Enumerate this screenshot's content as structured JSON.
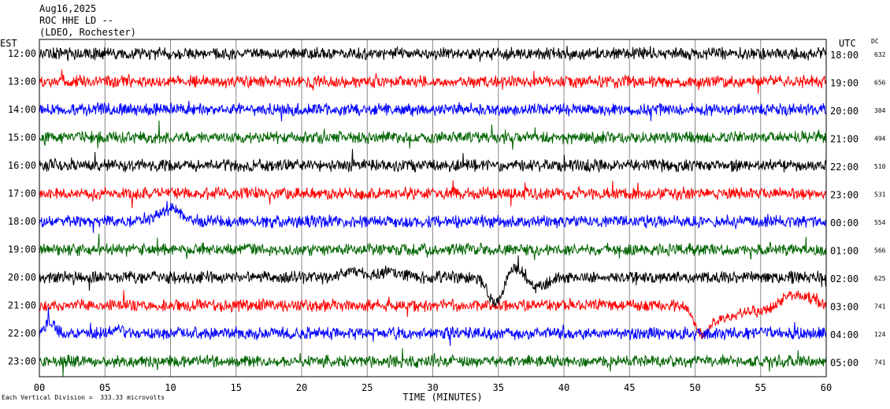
{
  "header": {
    "date": "Aug16,2025",
    "station": "ROC HHE LD --",
    "network": "(LDEO, Rochester)"
  },
  "left_axis_label": "EST",
  "right_axis_label": "UTC",
  "dc_label": "DC",
  "footer": "Each Vertical Division =  333.33 microvolts",
  "chart_data": {
    "type": "line",
    "title": "",
    "xlabel": "TIME (MINUTES)",
    "xlim": [
      0,
      60
    ],
    "x_ticks": [
      0,
      5,
      10,
      15,
      20,
      25,
      30,
      35,
      40,
      45,
      50,
      55,
      60
    ],
    "x_tick_labels": [
      "00",
      "05",
      "10",
      "15",
      "20",
      "25",
      "30",
      "35",
      "40",
      "45",
      "50",
      "55",
      "60"
    ],
    "vertical_grid": true,
    "trace_colors": [
      "#000000",
      "#ff0000",
      "#0000ff",
      "#006400"
    ],
    "rows": [
      {
        "est": "12:00",
        "utc": "18:00",
        "dc": "632"
      },
      {
        "est": "13:00",
        "utc": "19:00",
        "dc": "656"
      },
      {
        "est": "14:00",
        "utc": "20:00",
        "dc": "304"
      },
      {
        "est": "15:00",
        "utc": "21:00",
        "dc": "494"
      },
      {
        "est": "16:00",
        "utc": "22:00",
        "dc": "510"
      },
      {
        "est": "17:00",
        "utc": "23:00",
        "dc": "531"
      },
      {
        "est": "18:00",
        "utc": "00:00",
        "dc": "554"
      },
      {
        "est": "19:00",
        "utc": "01:00",
        "dc": "566"
      },
      {
        "est": "20:00",
        "utc": "02:00",
        "dc": "625"
      },
      {
        "est": "21:00",
        "utc": "03:00",
        "dc": "741"
      },
      {
        "est": "22:00",
        "utc": "04:00",
        "dc": "124"
      },
      {
        "est": "23:00",
        "utc": "05:00",
        "dc": "741"
      }
    ]
  }
}
